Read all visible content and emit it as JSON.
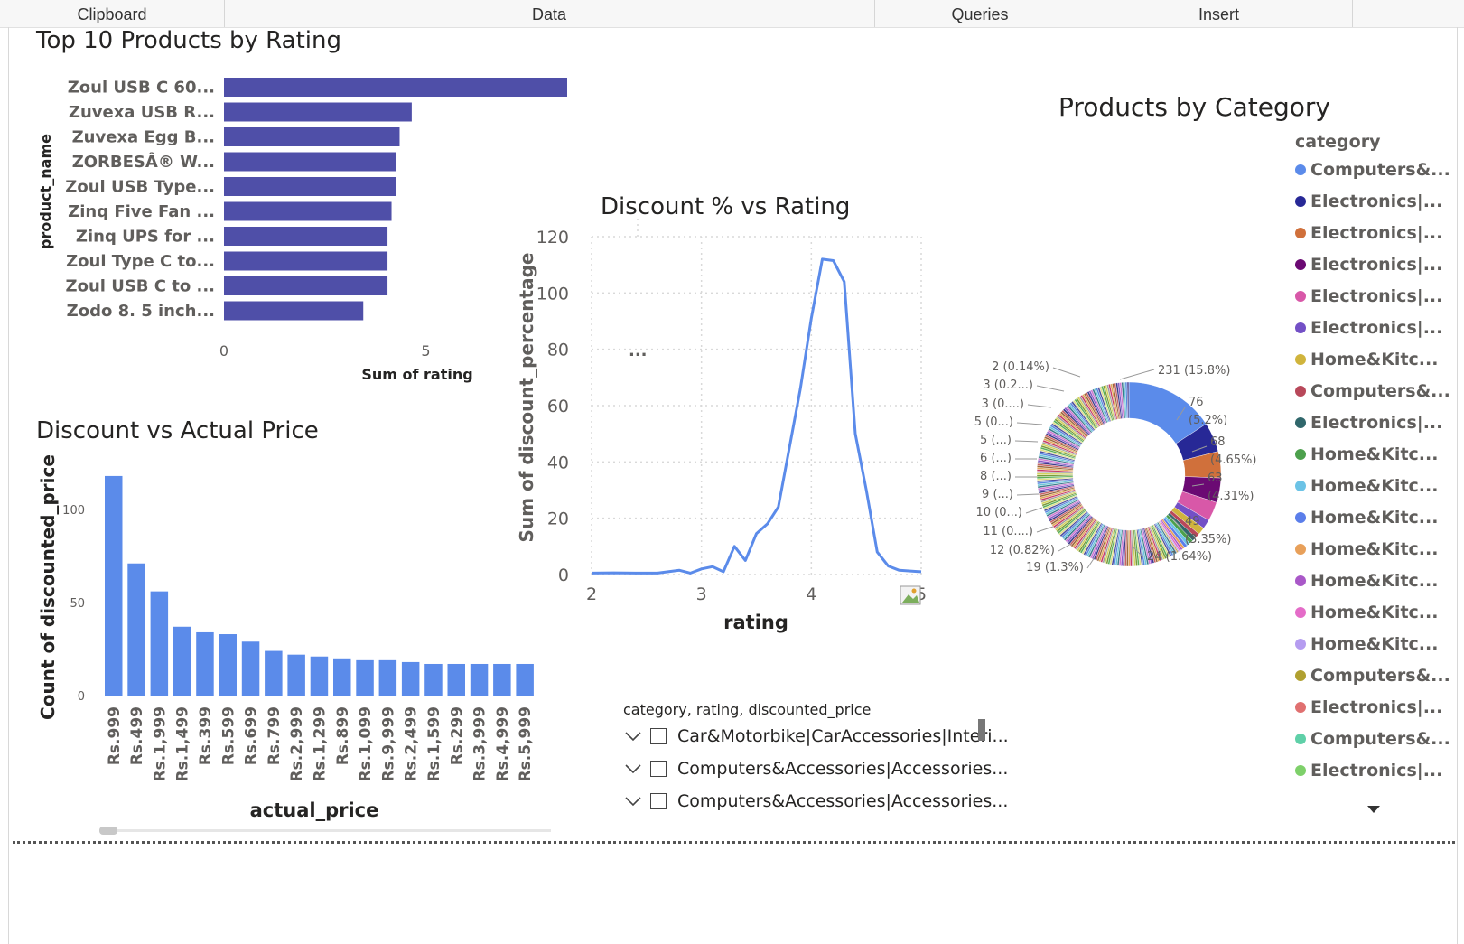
{
  "ribbon": {
    "groups": [
      {
        "label": "Clipboard"
      },
      {
        "label": "Data"
      },
      {
        "label": "Queries"
      },
      {
        "label": "Insert"
      }
    ]
  },
  "top_products": {
    "title": "Top 10 Products by Rating",
    "chart_data": {
      "type": "bar",
      "orientation": "horizontal",
      "title": "Top 10 Products by Rating",
      "xlabel": "Sum of rating",
      "ylabel": "product_name",
      "xlim": [
        0,
        8.5
      ],
      "xticks": [
        "0",
        "5"
      ],
      "color": "#4f4fa8",
      "categories": [
        "Zoul USB C 60...",
        "Zuvexa USB R...",
        "Zuvexa Egg B...",
        "ZORBESÂ® W...",
        "Zoul USB Type...",
        "Zinq Five Fan ...",
        "Zinq UPS for ...",
        "Zoul Type C to...",
        "Zoul USB C to ...",
        "Zodo 8. 5 inch..."
      ],
      "values": [
        8.5,
        4.65,
        4.35,
        4.25,
        4.25,
        4.15,
        4.05,
        4.05,
        4.05,
        3.45
      ]
    }
  },
  "discount_vs_rating": {
    "title": "Discount % vs Rating",
    "ellipsis": "...",
    "chart_data": {
      "type": "line",
      "title": "Discount % vs Rating",
      "xlabel": "rating",
      "ylabel": "Sum of discount_percentage",
      "xlim": [
        2,
        5
      ],
      "ylim": [
        0,
        120
      ],
      "xticks": [
        "2",
        "3",
        "4",
        "5"
      ],
      "yticks": [
        "0",
        "20",
        "40",
        "60",
        "80",
        "100",
        "120"
      ],
      "color": "#5b8bea",
      "x": [
        2.0,
        2.2,
        2.4,
        2.6,
        2.8,
        2.9,
        3.0,
        3.1,
        3.2,
        3.3,
        3.4,
        3.5,
        3.6,
        3.7,
        3.8,
        3.9,
        4.0,
        4.1,
        4.2,
        4.3,
        4.4,
        4.5,
        4.6,
        4.7,
        4.8,
        5.0
      ],
      "y": [
        0.5,
        0.6,
        0.5,
        0.5,
        1.5,
        0.5,
        2,
        2.8,
        1,
        10,
        5,
        14.5,
        18,
        24,
        45,
        66,
        91,
        112,
        111.5,
        104,
        50,
        30,
        8,
        3,
        1.5,
        1
      ]
    }
  },
  "discount_vs_price": {
    "title": "Discount vs Actual Price",
    "chart_data": {
      "type": "bar",
      "title": "Discount vs Actual Price",
      "xlabel": "actual_price",
      "ylabel": "Count of discounted_price",
      "ylim": [
        0,
        125
      ],
      "yticks": [
        "0",
        "50",
        "100"
      ],
      "color": "#5b8bea",
      "categories": [
        "Rs.999",
        "Rs.499",
        "Rs.1,999",
        "Rs.1,499",
        "Rs.399",
        "Rs.599",
        "Rs.699",
        "Rs.799",
        "Rs.2,999",
        "Rs.1,299",
        "Rs.899",
        "Rs.1,099",
        "Rs.9,999",
        "Rs.2,499",
        "Rs.1,599",
        "Rs.299",
        "Rs.3,999",
        "Rs.4,999",
        "Rs.5,999"
      ],
      "values": [
        118,
        71,
        56,
        37,
        34,
        33,
        29,
        24,
        22,
        21,
        20,
        19,
        19,
        18,
        17,
        17,
        17,
        17,
        17
      ]
    }
  },
  "products_by_category": {
    "title": "Products by Category",
    "chart_data": {
      "type": "pie",
      "variant": "donut",
      "title": "Products by Category",
      "legend_title": "category",
      "legend_position": "right",
      "slices": [
        {
          "value": 231,
          "label": "231 (15.8%)",
          "color": "#5b8bea"
        },
        {
          "value": 76,
          "label": "76 (5.2%)",
          "color": "#272896"
        },
        {
          "value": 68,
          "label": "68 (4.65%)",
          "color": "#d0703b"
        },
        {
          "value": 63,
          "label": "63 (4.31%)",
          "color": "#6b0a73"
        },
        {
          "value": 49,
          "label": "49 (3.35%)",
          "color": "#d858a8"
        },
        {
          "value": 24,
          "label": "24 (1.64%)",
          "color": "#7350c6"
        },
        {
          "value": 19,
          "label": "19 (1.3%)",
          "color": "#d0b43c"
        },
        {
          "value": 12,
          "label": "12 (0.82%)",
          "color": "#b8485a"
        },
        {
          "value": 11,
          "label": "11 (0....)",
          "color": "#30676b"
        },
        {
          "value": 10,
          "label": "10 (0...)",
          "color": "#4ca04c"
        },
        {
          "value": 9,
          "label": "9 (...)",
          "color": "#6cc3e6"
        },
        {
          "value": 8,
          "label": "8 (...)",
          "color": "#5b7eea"
        },
        {
          "value": 6,
          "label": "6 (...)",
          "color": "#e8a05a"
        },
        {
          "value": 5,
          "label": "5 (...)",
          "color": "#a958c8"
        },
        {
          "value": 5,
          "label": "5 (0...)",
          "color": "#e46cc8"
        },
        {
          "value": 3,
          "label": "3 (0....)",
          "color": "#b59cf0"
        },
        {
          "value": 3,
          "label": "3 (0.2...)",
          "color": "#b0a030"
        },
        {
          "value": 2,
          "label": "2 (0.14%)",
          "color": "#e07070"
        }
      ],
      "legend": [
        {
          "label": "Computers&...",
          "color": "#5b8bea"
        },
        {
          "label": "Electronics|...",
          "color": "#272896"
        },
        {
          "label": "Electronics|...",
          "color": "#d0703b"
        },
        {
          "label": "Electronics|...",
          "color": "#6b0a73"
        },
        {
          "label": "Electronics|...",
          "color": "#d858a8"
        },
        {
          "label": "Electronics|...",
          "color": "#7350c6"
        },
        {
          "label": "Home&Kitc...",
          "color": "#d0b43c"
        },
        {
          "label": "Computers&...",
          "color": "#b8485a"
        },
        {
          "label": "Electronics|...",
          "color": "#30676b"
        },
        {
          "label": "Home&Kitc...",
          "color": "#4ca04c"
        },
        {
          "label": "Home&Kitc...",
          "color": "#6cc3e6"
        },
        {
          "label": "Home&Kitc...",
          "color": "#5b7eea"
        },
        {
          "label": "Home&Kitc...",
          "color": "#e8a05a"
        },
        {
          "label": "Home&Kitc...",
          "color": "#a958c8"
        },
        {
          "label": "Home&Kitc...",
          "color": "#e46cc8"
        },
        {
          "label": "Home&Kitc...",
          "color": "#b59cf0"
        },
        {
          "label": "Computers&...",
          "color": "#b0a030"
        },
        {
          "label": "Electronics|...",
          "color": "#e07070"
        },
        {
          "label": "Computers&...",
          "color": "#5fd0a8"
        },
        {
          "label": "Electronics|...",
          "color": "#7ed06a"
        }
      ]
    }
  },
  "slicer": {
    "header": "category, rating, discounted_price",
    "items": [
      {
        "label": "Car&Motorbike|CarAccessories|Interi..."
      },
      {
        "label": "Computers&Accessories|Accessories..."
      },
      {
        "label": "Computers&Accessories|Accessories..."
      }
    ]
  }
}
